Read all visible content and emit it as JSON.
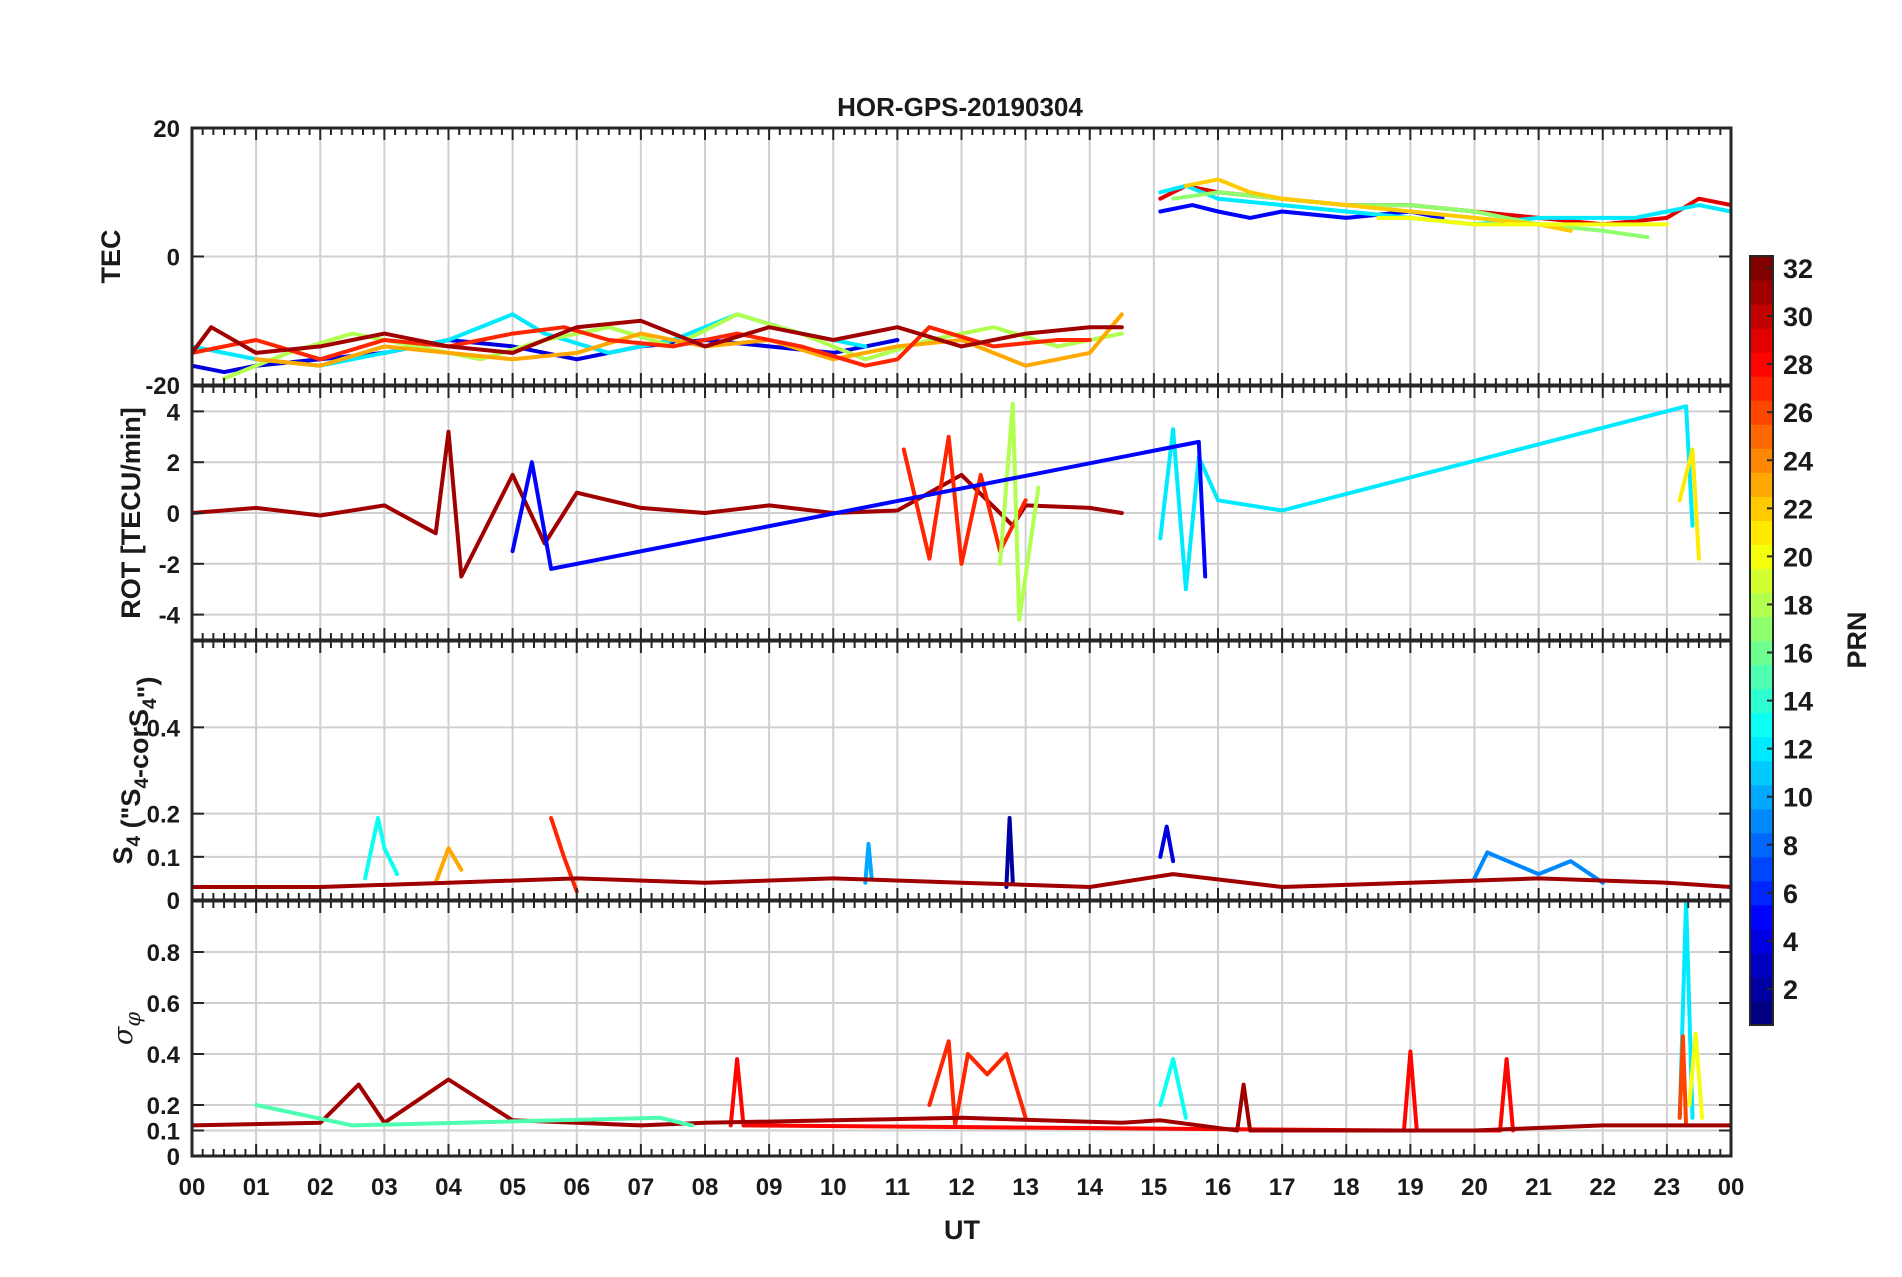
{
  "chart_data": {
    "type": "line",
    "title": "HOR-GPS-20190304",
    "xlabel": "UT",
    "xlim": [
      0,
      24
    ],
    "x_tick_labels": [
      "00",
      "01",
      "02",
      "03",
      "04",
      "05",
      "06",
      "07",
      "08",
      "09",
      "10",
      "11",
      "12",
      "13",
      "14",
      "15",
      "16",
      "17",
      "18",
      "19",
      "20",
      "21",
      "22",
      "23",
      "00"
    ],
    "data_gap_hours": [
      14.5,
      15.1
    ],
    "panels": [
      {
        "id": "tec",
        "ylabel": "TEC",
        "ylim": [
          -20,
          20
        ],
        "y_ticks": [
          -20,
          0,
          20
        ],
        "y_tick_labels": [
          "-20",
          "0",
          "20"
        ],
        "grid": true,
        "series": [
          {
            "prn": 4,
            "x": [
              0.0,
              0.5,
              1.0,
              2.0,
              3.0,
              4.0,
              5.0,
              6.0,
              7.0,
              8.0,
              9.0,
              10.0,
              11.0
            ],
            "y": [
              -17,
              -18,
              -17,
              -16,
              -15,
              -13,
              -14,
              -16,
              -14,
              -13,
              -14,
              -15,
              -13
            ]
          },
          {
            "prn": 12,
            "x": [
              0.0,
              1.0,
              2.0,
              3.0,
              4.0,
              5.0,
              5.5,
              6.5,
              7.5,
              8.5,
              9.5,
              10.5
            ],
            "y": [
              -14,
              -16,
              -17,
              -15,
              -13,
              -9,
              -12,
              -15,
              -13,
              -9,
              -12,
              -14
            ]
          },
          {
            "prn": 18,
            "x": [
              0.5,
              1.5,
              2.5,
              3.5,
              4.5,
              5.5,
              6.5,
              7.5,
              8.5,
              9.5,
              10.5,
              11.5,
              12.5,
              13.5,
              14.5
            ],
            "y": [
              -19,
              -15,
              -12,
              -14,
              -16,
              -13,
              -11,
              -14,
              -9,
              -12,
              -16,
              -13,
              -11,
              -14,
              -12
            ]
          },
          {
            "prn": 23,
            "x": [
              1.0,
              2.0,
              3.0,
              4.0,
              5.0,
              6.0,
              7.0,
              8.0,
              9.0,
              10.0,
              11.0,
              12.0,
              13.0,
              14.0,
              14.5
            ],
            "y": [
              -16,
              -17,
              -14,
              -15,
              -16,
              -15,
              -12,
              -14,
              -13,
              -16,
              -14,
              -13,
              -17,
              -15,
              -9
            ]
          },
          {
            "prn": 27,
            "x": [
              0.0,
              1.0,
              2.0,
              3.0,
              4.0,
              5.0,
              5.8,
              6.5,
              7.5,
              8.5,
              9.5,
              10.5,
              11.0,
              11.5,
              12.5,
              13.5,
              14.0
            ],
            "y": [
              -15,
              -13,
              -16,
              -13,
              -14,
              -12,
              -11,
              -13,
              -14,
              -12,
              -14,
              -17,
              -16,
              -11,
              -14,
              -13,
              -13
            ]
          },
          {
            "prn": 31,
            "x": [
              0.0,
              0.3,
              1.0,
              2.0,
              3.0,
              4.0,
              5.0,
              6.0,
              7.0,
              8.0,
              9.0,
              10.0,
              11.0,
              12.0,
              13.0,
              14.0,
              14.5
            ],
            "y": [
              -15,
              -11,
              -15,
              -14,
              -12,
              -14,
              -15,
              -11,
              -10,
              -14,
              -11,
              -13,
              -11,
              -14,
              -12,
              -11,
              -11
            ]
          },
          {
            "prn": 29,
            "x": [
              15.1,
              15.5,
              16.0,
              17.0,
              18.0,
              19.0,
              20.0,
              21.0,
              22.0,
              23.0,
              23.5,
              24.0
            ],
            "y": [
              9,
              11,
              10,
              9,
              8,
              8,
              7,
              6,
              5,
              6,
              9,
              8
            ]
          },
          {
            "prn": 5,
            "x": [
              15.1,
              15.6,
              16.0,
              16.5,
              17.0,
              18.0,
              19.0,
              19.5
            ],
            "y": [
              7,
              8,
              7,
              6,
              7,
              6,
              7,
              6
            ]
          },
          {
            "prn": 12,
            "x": [
              15.1,
              15.5,
              16.0,
              17.0,
              18.0,
              19.0,
              20.0,
              21.0,
              22.0,
              22.5,
              23.0,
              23.5,
              24.0
            ],
            "y": [
              10,
              11,
              9,
              8,
              7,
              6,
              5,
              6,
              6,
              6,
              7,
              8,
              7
            ]
          },
          {
            "prn": 17,
            "x": [
              15.3,
              16.0,
              17.0,
              18.0,
              19.0,
              20.0,
              21.0,
              22.0,
              22.7
            ],
            "y": [
              9,
              10,
              9,
              8,
              8,
              7,
              5,
              4,
              3
            ]
          },
          {
            "prn": 22,
            "x": [
              15.5,
              16.0,
              16.5,
              17.0,
              18.0,
              19.0,
              20.0,
              21.0,
              21.5
            ],
            "y": [
              11,
              12,
              10,
              9,
              8,
              7,
              6,
              5,
              4
            ]
          },
          {
            "prn": 20,
            "x": [
              18.5,
              19.0,
              20.0,
              21.0,
              22.0,
              23.0
            ],
            "y": [
              6,
              6,
              5,
              5,
              5,
              5
            ]
          }
        ]
      },
      {
        "id": "rot",
        "ylabel": "ROT [TECU/min]",
        "ylim": [
          -5,
          5
        ],
        "y_ticks": [
          -4,
          -2,
          0,
          2,
          4
        ],
        "y_tick_labels": [
          "-4",
          "-2",
          "0",
          "2",
          "4"
        ],
        "grid": true,
        "series": [
          {
            "prn": 31,
            "x": [
              0.0,
              1.0,
              2.0,
              3.0,
              3.8,
              4.0,
              4.2,
              5.0,
              5.5,
              6.0,
              7.0,
              8.0,
              9.0,
              10.0,
              11.0,
              12.0,
              12.8,
              13.0,
              14.0,
              14.5
            ],
            "y": [
              0,
              0.2,
              -0.1,
              0.3,
              -0.8,
              3.2,
              -2.5,
              1.5,
              -1.2,
              0.8,
              0.2,
              0,
              0.3,
              0,
              0.1,
              1.5,
              -0.5,
              0.3,
              0.2,
              0
            ]
          },
          {
            "prn": 27,
            "x": [
              11.1,
              11.5,
              11.8,
              12.0,
              12.3,
              12.6,
              13.0
            ],
            "y": [
              2.5,
              -1.8,
              3.0,
              -2.0,
              1.5,
              -1.5,
              0.5
            ]
          },
          {
            "prn": 18,
            "x": [
              12.6,
              12.8,
              12.9,
              13.2
            ],
            "y": [
              -2.0,
              4.3,
              -4.2,
              1.0
            ]
          },
          {
            "prn": 12,
            "x": [
              15.1,
              15.3,
              15.5,
              15.7,
              16.0,
              17.0,
              23.3,
              23.4
            ],
            "y": [
              -1.0,
              3.3,
              -3.0,
              2.2,
              0.5,
              0.1,
              4.2,
              -0.5
            ]
          },
          {
            "prn": 5,
            "x": [
              5.0,
              5.3,
              5.6,
              15.7,
              15.8
            ],
            "y": [
              -1.5,
              2.0,
              -2.2,
              2.8,
              -2.5
            ]
          },
          {
            "prn": 21,
            "x": [
              23.2,
              23.4,
              23.5
            ],
            "y": [
              0.5,
              2.5,
              -1.8
            ]
          }
        ]
      },
      {
        "id": "s4",
        "ylabel": "S4 (\"S4-corS4\")",
        "ylabel_parts": {
          "a": "S",
          "a_sub": "4",
          "b": " (\"S",
          "b_sub": "4",
          "c": "-corS",
          "c_sub": "4",
          "d": "\")"
        },
        "ylim": [
          0,
          0.6
        ],
        "y_ticks": [
          0,
          0.1,
          0.2,
          0.4
        ],
        "y_tick_labels": [
          "0",
          "0.1",
          "0.2",
          "0.4"
        ],
        "grid": true,
        "series": [
          {
            "prn": 13,
            "x": [
              2.7,
              2.9,
              3.0,
              3.2
            ],
            "y": [
              0.05,
              0.19,
              0.12,
              0.06
            ]
          },
          {
            "prn": 23,
            "x": [
              3.8,
              4.0,
              4.2
            ],
            "y": [
              0.04,
              0.12,
              0.07
            ]
          },
          {
            "prn": 27,
            "x": [
              5.6,
              5.8,
              6.0
            ],
            "y": [
              0.19,
              0.1,
              0.02
            ]
          },
          {
            "prn": 2,
            "x": [
              12.7,
              12.75,
              12.8
            ],
            "y": [
              0.03,
              0.19,
              0.04
            ]
          },
          {
            "prn": 4,
            "x": [
              15.1,
              15.2,
              15.3
            ],
            "y": [
              0.1,
              0.17,
              0.09
            ]
          },
          {
            "prn": 10,
            "x": [
              10.5,
              10.55,
              10.6
            ],
            "y": [
              0.04,
              0.13,
              0.05
            ]
          },
          {
            "prn": 9,
            "x": [
              20.0,
              20.2,
              21.0,
              21.5,
              22.0
            ],
            "y": [
              0.05,
              0.11,
              0.06,
              0.09,
              0.04
            ]
          },
          {
            "prn": 31,
            "x": [
              0.0,
              2.0,
              4.0,
              6.0,
              8.0,
              10.0,
              12.0,
              14.0,
              15.3,
              17.0,
              19.0,
              21.0,
              23.0,
              24.0
            ],
            "y": [
              0.03,
              0.03,
              0.04,
              0.05,
              0.04,
              0.05,
              0.04,
              0.03,
              0.06,
              0.03,
              0.04,
              0.05,
              0.04,
              0.03
            ]
          }
        ]
      },
      {
        "id": "sigma_phi",
        "ylabel": "σφ",
        "ylabel_parts": {
          "main": "σ",
          "sub": "φ"
        },
        "ylim": [
          0,
          1
        ],
        "y_ticks": [
          0,
          0.1,
          0.2,
          0.4,
          0.6,
          0.8
        ],
        "y_tick_labels": [
          "0",
          "0.1",
          "0.2",
          "0.4",
          "0.6",
          "0.8"
        ],
        "grid": true,
        "series": [
          {
            "prn": 12,
            "x": [
              23.2,
              23.3,
              23.4
            ],
            "y": [
              0.15,
              1.0,
              0.15
            ]
          },
          {
            "prn": 20,
            "x": [
              23.35,
              23.45,
              23.55
            ],
            "y": [
              0.2,
              0.48,
              0.15
            ]
          },
          {
            "prn": 26,
            "x": [
              23.2,
              23.25,
              23.3
            ],
            "y": [
              0.15,
              0.47,
              0.12
            ]
          },
          {
            "prn": 27,
            "x": [
              11.5,
              11.8,
              11.9,
              12.1,
              12.4,
              12.7,
              13.0
            ],
            "y": [
              0.2,
              0.45,
              0.12,
              0.4,
              0.32,
              0.4,
              0.15
            ]
          },
          {
            "prn": 28,
            "x": [
              8.4,
              8.5,
              8.6,
              18.9,
              19.0,
              19.1,
              20.4,
              20.5,
              20.6
            ],
            "y": [
              0.12,
              0.38,
              0.12,
              0.1,
              0.41,
              0.1,
              0.1,
              0.38,
              0.1
            ]
          },
          {
            "prn": 31,
            "x": [
              0.0,
              2.0,
              2.6,
              3.0,
              4.0,
              5.0,
              6.0,
              7.0,
              8.0,
              10.0,
              12.0,
              14.5,
              15.1,
              16.3,
              16.4,
              16.5,
              18.0,
              20.0,
              22.0,
              24.0
            ],
            "y": [
              0.12,
              0.13,
              0.28,
              0.13,
              0.3,
              0.14,
              0.13,
              0.12,
              0.13,
              0.14,
              0.15,
              0.13,
              0.14,
              0.1,
              0.28,
              0.1,
              0.1,
              0.1,
              0.12,
              0.12
            ]
          },
          {
            "prn": 13,
            "x": [
              15.1,
              15.3,
              15.5
            ],
            "y": [
              0.2,
              0.38,
              0.15
            ]
          },
          {
            "prn": 15,
            "x": [
              1.0,
              2.5,
              7.3,
              7.8
            ],
            "y": [
              0.2,
              0.12,
              0.15,
              0.12
            ]
          }
        ]
      }
    ],
    "colorbar": {
      "label": "PRN",
      "min": 1,
      "max": 32,
      "ticks": [
        2,
        4,
        6,
        8,
        10,
        12,
        14,
        16,
        18,
        20,
        22,
        24,
        26,
        28,
        30,
        32
      ],
      "tick_labels": [
        "2",
        "4",
        "6",
        "8",
        "10",
        "12",
        "14",
        "16",
        "18",
        "20",
        "22",
        "24",
        "26",
        "28",
        "30",
        "32"
      ],
      "colormap": "jet"
    }
  }
}
